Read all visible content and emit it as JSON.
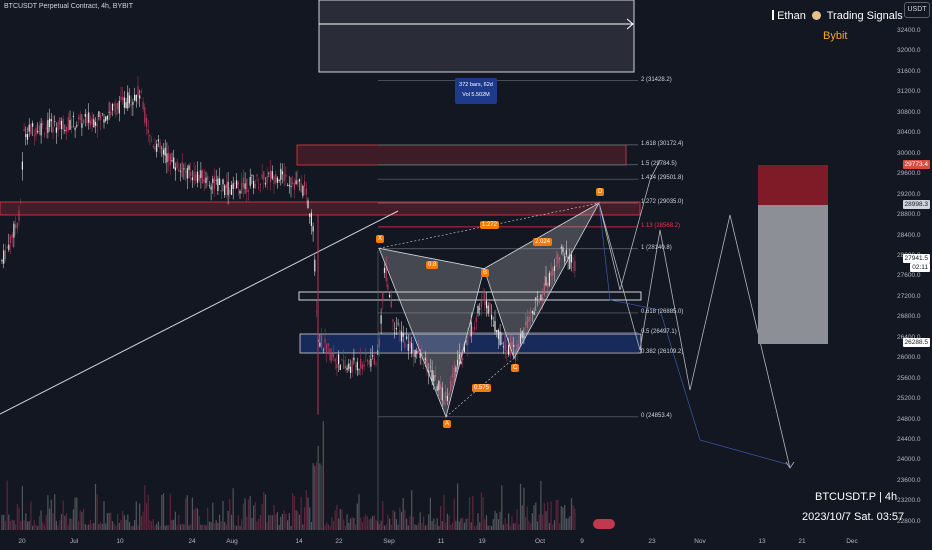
{
  "header": {
    "title": "BTCUSDT Perpetual Contract, 4h, BYBIT"
  },
  "brand": {
    "name": "Ethan",
    "service": "Trading Signals",
    "exchange": "Bybit",
    "accent": "#f7a531"
  },
  "currency_button": "USDT",
  "footer": {
    "symbol": "BTCUSDT.P | 4h",
    "datetime": "2023/10/7 Sat. 03:57"
  },
  "range_box": {
    "bars": "372 bars, 62d",
    "vol": "Vol 5.502M"
  },
  "fib_levels": [
    {
      "label": "2 (31428.2)",
      "price": 31428.2
    },
    {
      "label": "1.618 (30172.4)",
      "price": 30172.4
    },
    {
      "label": "1.5 (29784.5)",
      "price": 29784.5
    },
    {
      "label": "1.414 (29501.8)",
      "price": 29501.8
    },
    {
      "label": "1.272 (29035.0)",
      "price": 29035.0
    },
    {
      "label": "1.13 (28568.2)",
      "price": 28568.2,
      "color": "#f23645"
    },
    {
      "label": "1 (28140.8)",
      "price": 28140.8
    },
    {
      "label": "0.618 (26885.0)",
      "price": 26885.0
    },
    {
      "label": "0.5 (26497.1)",
      "price": 26497.1
    },
    {
      "label": "0.382 (26109.2)",
      "price": 26109.2
    },
    {
      "label": "0 (24853.4)",
      "price": 24853.4
    }
  ],
  "pattern_tags": [
    "X",
    "A",
    "B",
    "C",
    "D",
    "0.8",
    "0.575",
    "1.272",
    "2.024"
  ],
  "price_labels": [
    {
      "text": "29773.4",
      "price": 29773.4,
      "bg": "#d84d3e",
      "fg": "#ffffff"
    },
    {
      "text": "28998.3",
      "price": 28998.3,
      "bg": "#d1d4dc",
      "fg": "#131722"
    },
    {
      "text": "27941.5",
      "price": 27941.5,
      "bg": "#ffffff",
      "fg": "#131722"
    },
    {
      "text": "02:11",
      "price": 27941.5,
      "bg": "#ffffff",
      "fg": "#131722"
    },
    {
      "text": "26288.5",
      "price": 26288.5,
      "bg": "#ffffff",
      "fg": "#131722"
    }
  ],
  "y_ticks": [
    "32400.0",
    "32000.0",
    "31600.0",
    "31200.0",
    "30800.0",
    "30400.0",
    "30000.0",
    "29600.0",
    "29200.0",
    "28800.0",
    "28400.0",
    "28000.0",
    "27600.0",
    "27200.0",
    "26800.0",
    "26400.0",
    "26000.0",
    "25600.0",
    "25200.0",
    "24800.0",
    "24400.0",
    "24000.0",
    "23600.0",
    "23200.0",
    "22800.0"
  ],
  "x_ticks": [
    "20",
    "Jul",
    "10",
    "24",
    "Aug",
    "14",
    "22",
    "Sep",
    "11",
    "19",
    "Oct",
    "9",
    "23",
    "Nov",
    "13",
    "21",
    "Dec"
  ],
  "chart_data": {
    "type": "candlestick",
    "ylim": [
      22800,
      32400
    ],
    "price_range": [
      22600,
      32600
    ],
    "colors": {
      "up": "#e8e8e8",
      "down": "#b53a5a",
      "bg": "#131722"
    }
  }
}
